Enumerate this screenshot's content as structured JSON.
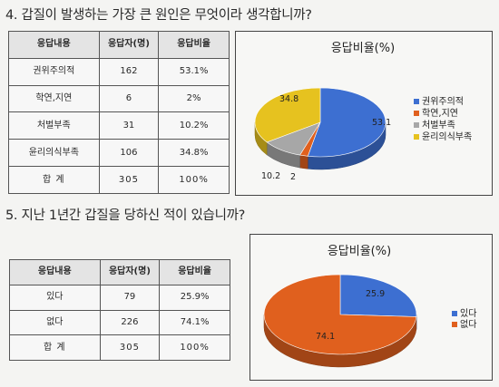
{
  "q4": {
    "question": "4. 갑질이 발생하는 가장 큰 원인은 무엇이라 생각합니까?",
    "table": {
      "headers": [
        "응답내용",
        "응답자(명)",
        "응답비율"
      ],
      "rows": [
        {
          "label": "권위주의적",
          "count": "162",
          "ratio": "53.1%"
        },
        {
          "label": "학연,지연",
          "count": "6",
          "ratio": "2%"
        },
        {
          "label": "처벌부족",
          "count": "31",
          "ratio": "10.2%"
        },
        {
          "label": "윤리의식부족",
          "count": "106",
          "ratio": "34.8%"
        }
      ],
      "total": {
        "label": "합 계",
        "count": "305",
        "ratio": "100%"
      }
    }
  },
  "q5": {
    "question": "5. 지난 1년간 갑질을 당하신 적이 있습니까?",
    "table": {
      "headers": [
        "응답내용",
        "응답자(명)",
        "응답비율"
      ],
      "rows": [
        {
          "label": "있다",
          "count": "79",
          "ratio": "25.9%"
        },
        {
          "label": "없다",
          "count": "226",
          "ratio": "74.1%"
        }
      ],
      "total": {
        "label": "합 계",
        "count": "305",
        "ratio": "100%"
      }
    }
  },
  "chart_data": [
    {
      "type": "pie",
      "title": "응답비율(%)",
      "categories": [
        "권위주의적",
        "학연,지연",
        "처벌부족",
        "윤리의식부족"
      ],
      "values": [
        53.1,
        2,
        10.2,
        34.8
      ],
      "value_labels": [
        "53.1",
        "2",
        "10.2",
        "34.8"
      ],
      "colors": [
        "#3d6fd1",
        "#e0601e",
        "#a7a7a7",
        "#e6c21f"
      ],
      "legend_position": "right"
    },
    {
      "type": "pie",
      "title": "응답비율(%)",
      "categories": [
        "있다",
        "없다"
      ],
      "values": [
        25.9,
        74.1
      ],
      "value_labels": [
        "25.9",
        "74.1"
      ],
      "colors": [
        "#3d6fd1",
        "#e0601e"
      ],
      "legend_position": "right"
    }
  ]
}
